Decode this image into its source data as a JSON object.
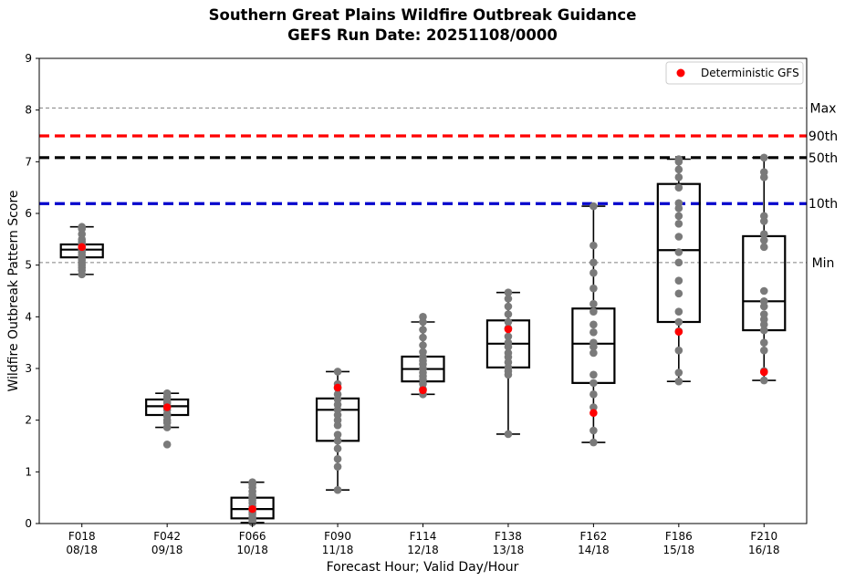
{
  "chart_data": {
    "type": "box",
    "title": "Southern Great Plains Wildfire Outbreak Guidance",
    "subtitle": "GEFS Run Date: 20251108/0000",
    "xlabel": "Forecast Hour; Valid Day/Hour",
    "ylabel": "Wildfire Outbreak Pattern Score",
    "ylim": [
      0,
      9
    ],
    "yticks": [
      "0",
      "1",
      "2",
      "3",
      "4",
      "5",
      "6",
      "7",
      "8",
      "9"
    ],
    "legend": {
      "label": "Deterministic GFS",
      "location": "top-right",
      "color": "#ff0000"
    },
    "reference_lines": [
      {
        "label": "Max",
        "value": 8.04,
        "color": "#808080",
        "style": "dashed-thin"
      },
      {
        "label": "90th",
        "value": 7.5,
        "color": "#ff0000",
        "style": "dashed-thick"
      },
      {
        "label": "50th",
        "value": 7.08,
        "color": "#000000",
        "style": "dashed-thick"
      },
      {
        "label": "10th",
        "value": 6.19,
        "color": "#0000cc",
        "style": "dashed-thick"
      },
      {
        "label": "Min",
        "value": 5.05,
        "color": "#808080",
        "style": "dashed-thin"
      }
    ],
    "categories": [
      {
        "hour": "F018",
        "valid": "08/18",
        "q1": 5.15,
        "median": 5.3,
        "q3": 5.4,
        "whisker_low": 4.82,
        "whisker_high": 5.74,
        "members": [
          4.82,
          4.9,
          4.95,
          5.0,
          5.05,
          5.1,
          5.15,
          5.2,
          5.25,
          5.3,
          5.35,
          5.4,
          5.45,
          5.5,
          5.6,
          5.7,
          5.74
        ],
        "deterministic": 5.35
      },
      {
        "hour": "F042",
        "valid": "09/18",
        "q1": 2.1,
        "median": 2.27,
        "q3": 2.4,
        "whisker_low": 1.86,
        "whisker_high": 2.52,
        "members": [
          1.53,
          1.86,
          1.95,
          2.0,
          2.08,
          2.12,
          2.2,
          2.27,
          2.33,
          2.38,
          2.45,
          2.52
        ],
        "deterministic": 2.25
      },
      {
        "hour": "F066",
        "valid": "10/18",
        "q1": 0.1,
        "median": 0.28,
        "q3": 0.5,
        "whisker_low": 0.02,
        "whisker_high": 0.8,
        "members": [
          0.02,
          0.05,
          0.08,
          0.12,
          0.18,
          0.22,
          0.28,
          0.33,
          0.4,
          0.45,
          0.5,
          0.55,
          0.62,
          0.7,
          0.76,
          0.8
        ],
        "deterministic": 0.28
      },
      {
        "hour": "F090",
        "valid": "11/18",
        "q1": 1.6,
        "median": 2.2,
        "q3": 2.42,
        "whisker_low": 0.65,
        "whisker_high": 2.94,
        "members": [
          0.65,
          1.1,
          1.25,
          1.45,
          1.6,
          1.72,
          1.9,
          2.0,
          2.1,
          2.2,
          2.3,
          2.4,
          2.5,
          2.62,
          2.7,
          2.94
        ],
        "deterministic": 2.63
      },
      {
        "hour": "F114",
        "valid": "12/18",
        "q1": 2.75,
        "median": 2.99,
        "q3": 3.23,
        "whisker_low": 2.5,
        "whisker_high": 3.9,
        "members": [
          2.5,
          2.6,
          2.7,
          2.78,
          2.85,
          2.92,
          3.0,
          3.08,
          3.15,
          3.22,
          3.32,
          3.45,
          3.6,
          3.75,
          3.9,
          4.0
        ],
        "deterministic": 2.58
      },
      {
        "hour": "F138",
        "valid": "13/18",
        "q1": 3.02,
        "median": 3.48,
        "q3": 3.93,
        "whisker_low": 1.73,
        "whisker_high": 4.47,
        "members": [
          1.73,
          2.88,
          2.95,
          3.02,
          3.12,
          3.22,
          3.3,
          3.42,
          3.5,
          3.62,
          3.78,
          3.9,
          4.05,
          4.2,
          4.35,
          4.47
        ],
        "deterministic": 3.76
      },
      {
        "hour": "F162",
        "valid": "14/18",
        "q1": 2.72,
        "median": 3.48,
        "q3": 4.16,
        "whisker_low": 1.57,
        "whisker_high": 6.14,
        "members": [
          1.57,
          1.8,
          2.25,
          2.5,
          2.72,
          2.88,
          3.3,
          3.42,
          3.5,
          3.7,
          3.85,
          4.1,
          4.25,
          4.55,
          4.85,
          5.05,
          5.38,
          6.14
        ],
        "deterministic": 2.14
      },
      {
        "hour": "F186",
        "valid": "15/18",
        "q1": 3.9,
        "median": 5.29,
        "q3": 6.57,
        "whisker_low": 2.75,
        "whisker_high": 7.05,
        "members": [
          2.75,
          2.92,
          3.35,
          3.72,
          3.9,
          4.1,
          4.45,
          4.7,
          5.05,
          5.25,
          5.55,
          5.8,
          5.95,
          6.1,
          6.2,
          6.5,
          6.7,
          6.85,
          7.0,
          7.05
        ],
        "deterministic": 3.71
      },
      {
        "hour": "F210",
        "valid": "16/18",
        "q1": 3.74,
        "median": 4.3,
        "q3": 5.56,
        "whisker_low": 2.77,
        "whisker_high": 7.08,
        "members": [
          2.77,
          2.95,
          3.35,
          3.5,
          3.74,
          3.85,
          3.95,
          4.05,
          4.2,
          4.3,
          4.5,
          5.35,
          5.48,
          5.6,
          5.85,
          5.95,
          6.7,
          6.8,
          7.08
        ],
        "deterministic": 2.93
      }
    ]
  }
}
